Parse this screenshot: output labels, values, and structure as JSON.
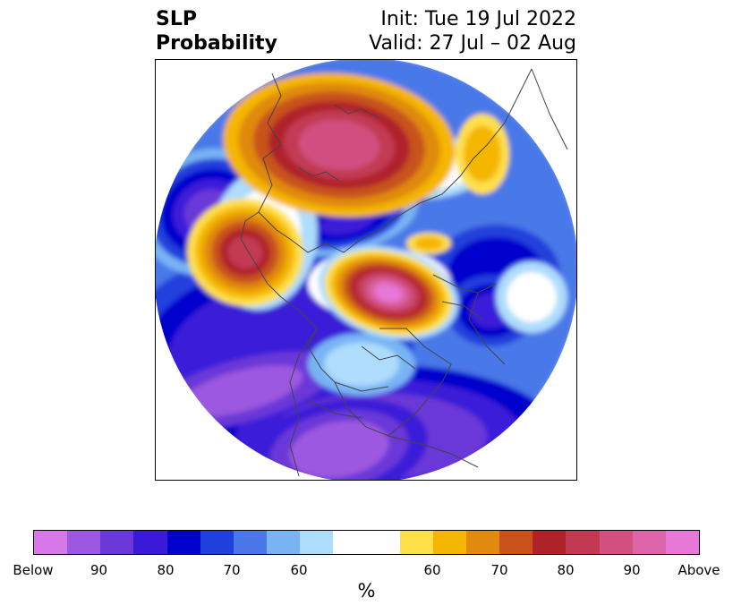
{
  "title": {
    "left_line1": "SLP",
    "left_line2": "Probability",
    "right_line1": "Init: Tue 19 Jul 2022",
    "right_line2": "Valid: 27 Jul – 02 Aug"
  },
  "colorbar": {
    "colors": [
      "#d878e8",
      "#9c58e0",
      "#6a38d8",
      "#3a1ad8",
      "#0000cc",
      "#2040dc",
      "#4a78e8",
      "#78b4f4",
      "#aedcfc",
      "#ffffff",
      "#ffe048",
      "#f4b600",
      "#e08a10",
      "#c8521a",
      "#b0222a",
      "#c23a52",
      "#d05080",
      "#dc64a8",
      "#e878d8"
    ],
    "tick_labels": [
      "Below",
      "90",
      "80",
      "70",
      "60",
      "60",
      "70",
      "80",
      "90",
      "Above"
    ],
    "unit": "%"
  },
  "map": {
    "colors": {
      "below": "#d878e8",
      "b90": "#9c58e0",
      "b80": "#6a38d8",
      "b75": "#3a1ad8",
      "b70": "#0000cc",
      "b65": "#2040dc",
      "b60": "#4a78e8",
      "b55": "#78b4f4",
      "b50": "#aedcfc",
      "neutral": "#ffffff",
      "a50": "#ffe048",
      "a55": "#f4b600",
      "a60": "#e08a10",
      "a65": "#c8521a",
      "a70": "#b0222a",
      "a75": "#c23a52",
      "a80": "#d05080",
      "a85": "#dc64a8",
      "above": "#e878d8"
    },
    "coastline_color": "#444444"
  }
}
